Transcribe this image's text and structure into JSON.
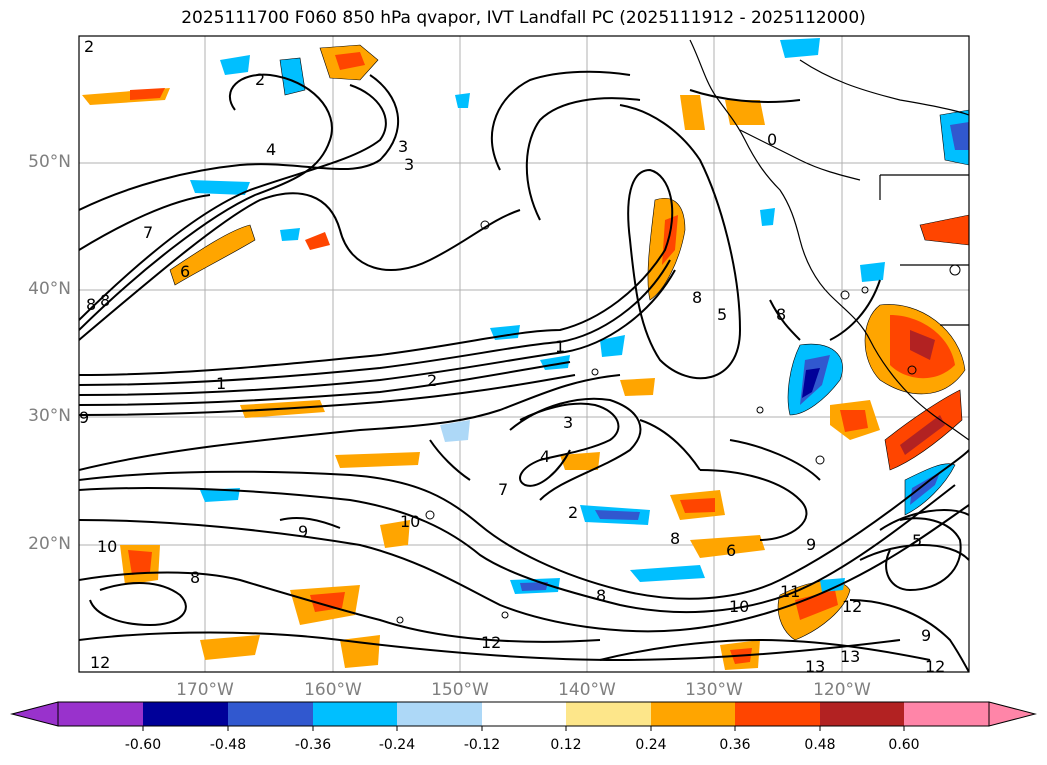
{
  "title": "2025111700 F060 850 hPa qvapor, IVT Landfall PC (2025111912 - 2025112000)",
  "map": {
    "lat_labels": [
      "50°N",
      "40°N",
      "30°N",
      "20°N"
    ],
    "lon_labels": [
      "170°W",
      "160°W",
      "150°W",
      "140°W",
      "130°W",
      "120°W"
    ],
    "contour_labels": [
      "2",
      "2",
      "3",
      "3",
      "4",
      "7",
      "6",
      "8",
      "8",
      "1",
      "2",
      "8",
      "8",
      "5",
      "9",
      "3",
      "4",
      "7",
      "2",
      "1",
      "10",
      "9",
      "10",
      "8",
      "6",
      "8",
      "9",
      "10",
      "11",
      "12",
      "12",
      "13",
      "13",
      "12",
      "12",
      "9",
      "8",
      "5",
      "0"
    ],
    "colors": {
      "land_line": "#000000",
      "grid": "#b0b0b0",
      "tick_text": "#7f7f7f"
    }
  },
  "colorbar": {
    "ticks": [
      "-0.60",
      "-0.48",
      "-0.36",
      "-0.24",
      "-0.12",
      "0.12",
      "0.24",
      "0.36",
      "0.48",
      "0.60"
    ],
    "colors": [
      "#9932cc",
      "#9f34cf",
      "#000099",
      "#3158cf",
      "#00bfff",
      "#add8f7",
      "#ffffff",
      "#fde68a",
      "#ffa500",
      "#ff4500",
      "#b22222",
      "#ff85a8"
    ]
  }
}
